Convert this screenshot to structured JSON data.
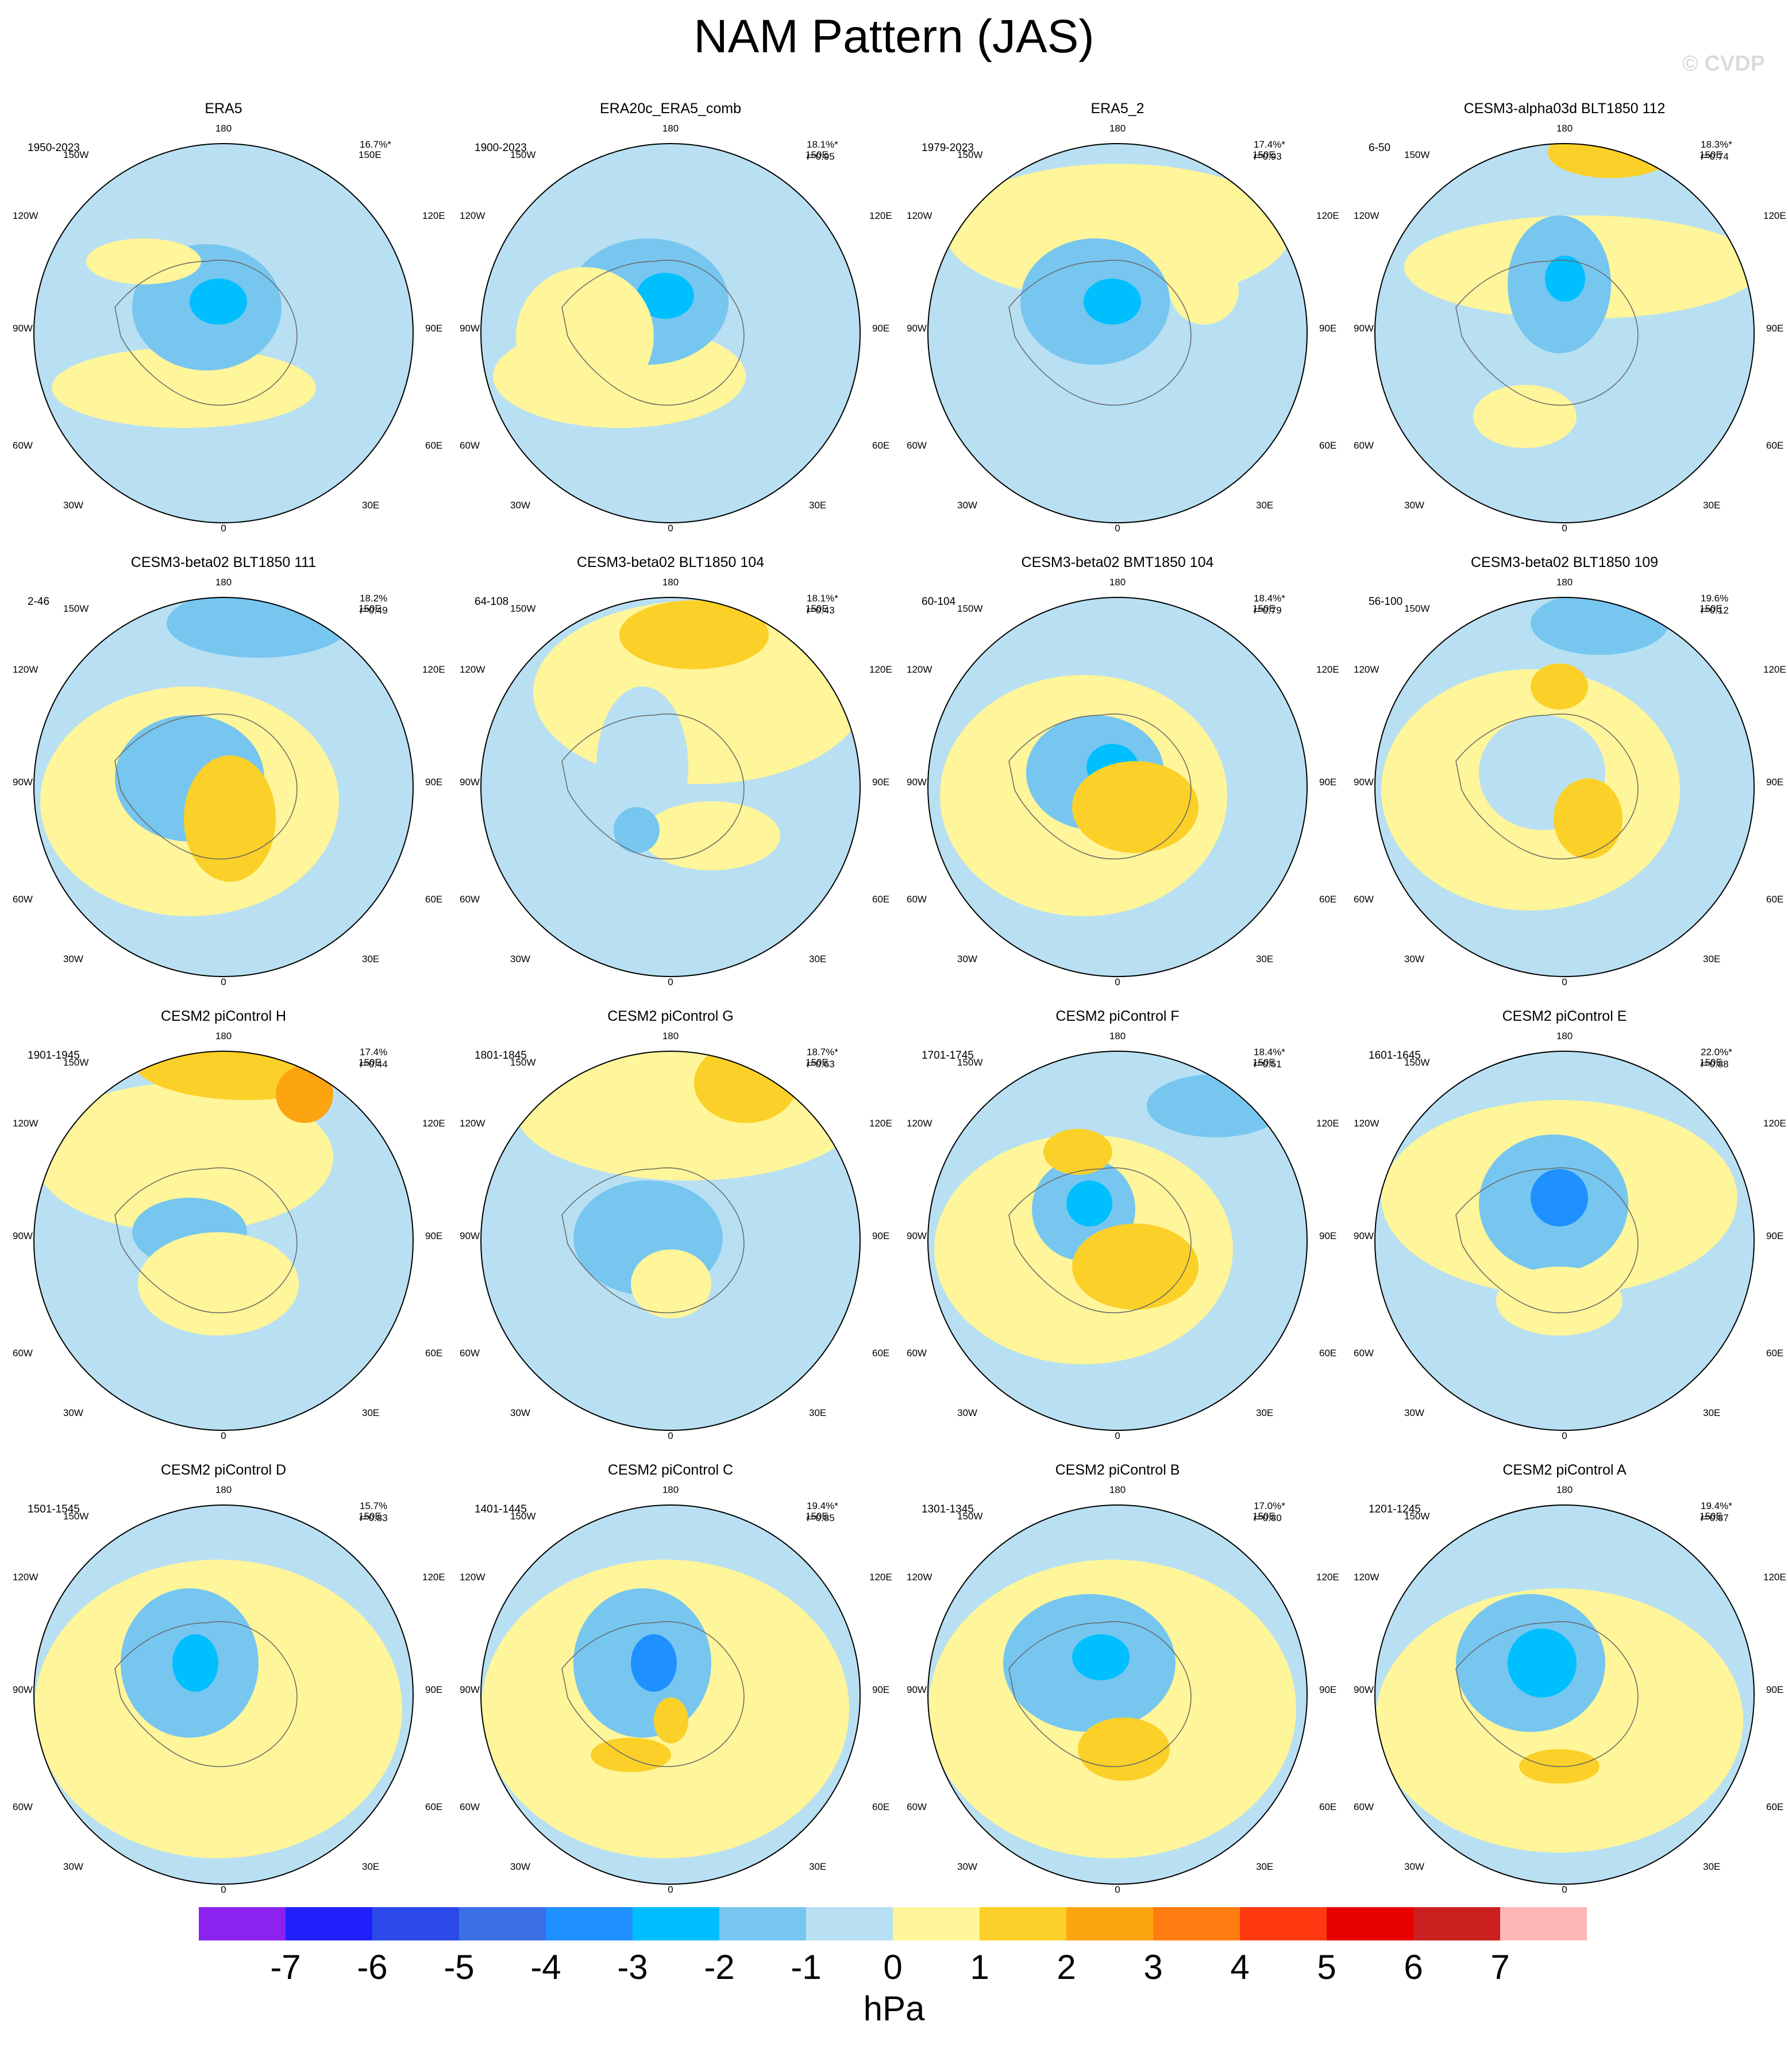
{
  "title": "NAM Pattern (JAS)",
  "watermark": "© CVDP",
  "units": "hPa",
  "colorbar": {
    "labels": [
      "-7",
      "-6",
      "-5",
      "-4",
      "-3",
      "-2",
      "-1",
      "0",
      "1",
      "2",
      "3",
      "4",
      "5",
      "6",
      "7"
    ],
    "colors": [
      "#8b22ee",
      "#2020ff",
      "#2b49e8",
      "#3a6fe6",
      "#1e90ff",
      "#00bfff",
      "#77c6f0",
      "#b8e0f2",
      "#fff59a",
      "#fbd028",
      "#fca510",
      "#ff7c10",
      "#ff3a10",
      "#e80000",
      "#cc2020",
      "#ffb6b6"
    ]
  },
  "map_labels": {
    "top": "180",
    "bottom": "0",
    "left": "90W",
    "right": "90E",
    "upper_left_1": "150W",
    "upper_left_2": "120W",
    "upper_right_1": "150E",
    "upper_right_2": "120E",
    "lower_left_1": "60W",
    "lower_left_2": "30W",
    "lower_right_1": "60E",
    "lower_right_2": "30E"
  },
  "chart_data": [
    {
      "type": "map",
      "title": "ERA5",
      "period": "1950-2023",
      "variance": "16.7%*",
      "r": ""
    },
    {
      "type": "map",
      "title": "ERA20c_ERA5_comb",
      "period": "1900-2023",
      "variance": "18.1%*",
      "r": "r=0.95"
    },
    {
      "type": "map",
      "title": "ERA5_2",
      "period": "1979-2023",
      "variance": "17.4%*",
      "r": "r=0.93"
    },
    {
      "type": "map",
      "title": "CESM3-alpha03d BLT1850 112",
      "period": "6-50",
      "variance": "18.3%*",
      "r": "r=0.74"
    },
    {
      "type": "map",
      "title": "CESM3-beta02 BLT1850 111",
      "period": "2-46",
      "variance": "18.2%",
      "r": "r=0.49"
    },
    {
      "type": "map",
      "title": "CESM3-beta02 BLT1850 104",
      "period": "64-108",
      "variance": "18.1%*",
      "r": "r=0.43"
    },
    {
      "type": "map",
      "title": "CESM3-beta02 BMT1850 104",
      "period": "60-104",
      "variance": "18.4%*",
      "r": "r=0.79"
    },
    {
      "type": "map",
      "title": "CESM3-beta02 BLT1850 109",
      "period": "56-100",
      "variance": "19.6%",
      "r": "r=0.12"
    },
    {
      "type": "map",
      "title": "CESM2 piControl H",
      "period": "1901-1945",
      "variance": "17.4%",
      "r": "r=0.44"
    },
    {
      "type": "map",
      "title": "CESM2 piControl G",
      "period": "1801-1845",
      "variance": "18.7%*",
      "r": "r=0.63"
    },
    {
      "type": "map",
      "title": "CESM2 piControl F",
      "period": "1701-1745",
      "variance": "18.4%*",
      "r": "r=0.51"
    },
    {
      "type": "map",
      "title": "CESM2 piControl E",
      "period": "1601-1645",
      "variance": "22.0%*",
      "r": "r=0.88"
    },
    {
      "type": "map",
      "title": "CESM2 piControl D",
      "period": "1501-1545",
      "variance": "15.7%",
      "r": "r=0.83"
    },
    {
      "type": "map",
      "title": "CESM2 piControl C",
      "period": "1401-1445",
      "variance": "19.4%*",
      "r": "r=0.85"
    },
    {
      "type": "map",
      "title": "CESM2 piControl B",
      "period": "1301-1345",
      "variance": "17.0%*",
      "r": "r=0.80"
    },
    {
      "type": "map",
      "title": "CESM2 piControl A",
      "period": "1201-1245",
      "variance": "19.4%*",
      "r": "r=0.87"
    }
  ]
}
